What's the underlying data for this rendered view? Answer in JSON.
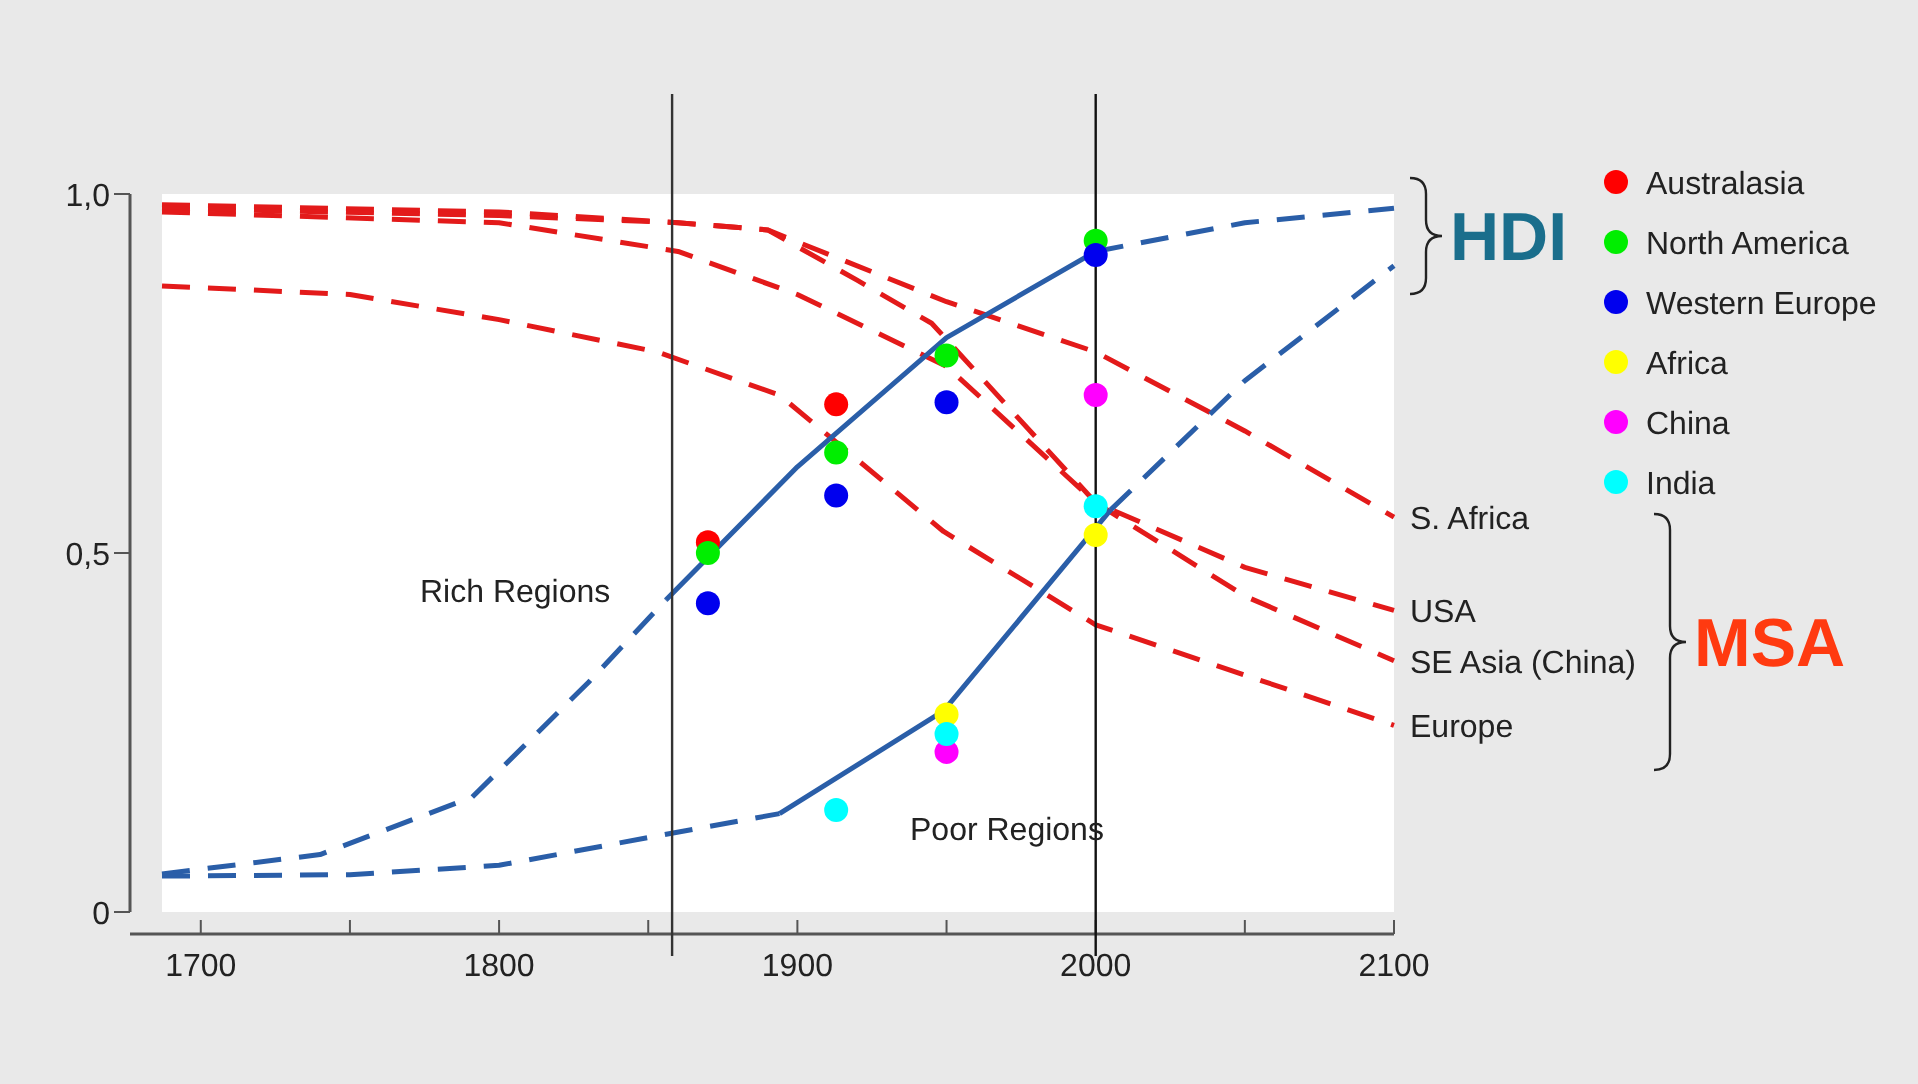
{
  "chart_data": {
    "type": "line",
    "xlim": [
      1687,
      2100
    ],
    "ylim": [
      0,
      1
    ],
    "xticks": [
      1700,
      {
        "value": 1750,
        "label": null
      },
      1800,
      {
        "value": 1850,
        "label": null
      },
      1900,
      {
        "value": 1950,
        "label": null
      },
      2000,
      {
        "value": 2050,
        "label": null
      },
      2100
    ],
    "yticks": [
      0,
      {
        "value": 0.5,
        "label": "0,5"
      },
      {
        "value": 1,
        "label": "1,0"
      }
    ],
    "grid": false,
    "legend": "right",
    "ref_lines": [
      {
        "axis": "x",
        "value": 1858,
        "color": "#333333"
      },
      {
        "axis": "x",
        "value": 2000,
        "color": "#111111"
      }
    ],
    "series": [
      {
        "color": "#e31a1a",
        "line_style": "dashed",
        "name": "S. Africa",
        "x": [
          1687,
          1800,
          1860,
          1890,
          1950,
          2000,
          2050,
          2100
        ],
        "values": [
          0.985,
          0.975,
          0.96,
          0.95,
          0.85,
          0.78,
          0.67,
          0.55
        ]
      },
      {
        "type": "line",
        "color": "#e31a1a",
        "line_style": "dashed",
        "name": "USA",
        "x": [
          1687,
          1800,
          1860,
          1890,
          1920,
          1945,
          2000,
          2050,
          2100
        ],
        "values": [
          0.98,
          0.97,
          0.96,
          0.95,
          0.88,
          0.82,
          0.57,
          0.48,
          0.42
        ]
      },
      {
        "type": "line",
        "color": "#e31a1a",
        "line_style": "dashed",
        "name": "SE Asia (China)",
        "x": [
          1687,
          1800,
          1860,
          1900,
          1950,
          2000,
          2050,
          2100
        ],
        "values": [
          0.975,
          0.96,
          0.92,
          0.86,
          0.76,
          0.57,
          0.44,
          0.35
        ]
      },
      {
        "type": "line",
        "color": "#e31a1a",
        "line_style": "dashed",
        "name": "Europe",
        "x": [
          1687,
          1750,
          1800,
          1853,
          1894,
          1949,
          2000,
          2100
        ],
        "values": [
          0.872,
          0.86,
          0.825,
          0.78,
          0.72,
          0.53,
          0.4,
          0.26
        ]
      },
      {
        "type": "line",
        "color": "#2a5ea8",
        "line_style": "dashed",
        "x": [
          1687,
          1740,
          1791,
          1830,
          1856
        ],
        "values": [
          0.053,
          0.08,
          0.16,
          0.32,
          0.435
        ]
      },
      {
        "type": "line",
        "color": "#2a5ea8",
        "line_style": "solid",
        "x": [
          1856,
          1900,
          1950,
          2000
        ],
        "values": [
          0.435,
          0.62,
          0.8,
          0.92
        ]
      },
      {
        "type": "line",
        "color": "#2a5ea8",
        "line_style": "dashed",
        "x": [
          2000,
          2050,
          2100
        ],
        "values": [
          0.92,
          0.96,
          0.98
        ]
      },
      {
        "type": "line",
        "color": "#2a5ea8",
        "line_style": "dashed",
        "x": [
          1687,
          1750,
          1800,
          1853,
          1894
        ],
        "values": [
          0.05,
          0.052,
          0.065,
          0.106,
          0.137
        ]
      },
      {
        "type": "line",
        "color": "#2a5ea8",
        "line_style": "solid",
        "x": [
          1894,
          1949,
          2005
        ],
        "values": [
          0.137,
          0.28,
          0.56
        ]
      },
      {
        "type": "line",
        "color": "#2a5ea8",
        "line_style": "dashed",
        "x": [
          2005,
          2050,
          2100
        ],
        "values": [
          0.56,
          0.74,
          0.9
        ]
      },
      {
        "type": "scatter",
        "marker": "circle",
        "color": "#ff0000",
        "name": "Australasia",
        "x": [
          1870,
          1913
        ],
        "values": [
          0.515,
          0.707
        ]
      },
      {
        "type": "scatter",
        "marker": "circle",
        "color": "#00ee00",
        "name": "North America",
        "x": [
          1870,
          1913,
          1950,
          2000
        ],
        "values": [
          0.5,
          0.64,
          0.775,
          0.935
        ]
      },
      {
        "type": "scatter",
        "marker": "circle",
        "color": "#0000ee",
        "name": "Western Europe",
        "x": [
          1870,
          1913,
          1950,
          2000
        ],
        "values": [
          0.43,
          0.58,
          0.71,
          0.915
        ]
      },
      {
        "type": "scatter",
        "marker": "circle",
        "color": "#ffff00",
        "name": "Africa",
        "x": [
          1950,
          2000
        ],
        "values": [
          0.275,
          0.525
        ]
      },
      {
        "type": "scatter",
        "marker": "circle",
        "color": "#ff00ff",
        "name": "China",
        "x": [
          1950,
          2000
        ],
        "values": [
          0.223,
          0.72
        ]
      },
      {
        "type": "scatter",
        "marker": "circle",
        "color": "#00ffff",
        "name": "India",
        "x": [
          1913,
          1950,
          2000
        ],
        "values": [
          0.142,
          0.248,
          0.565
        ]
      }
    ],
    "annotations": [
      "Rich Regions",
      "Poor Regions",
      "HDI",
      "MSA"
    ]
  }
}
